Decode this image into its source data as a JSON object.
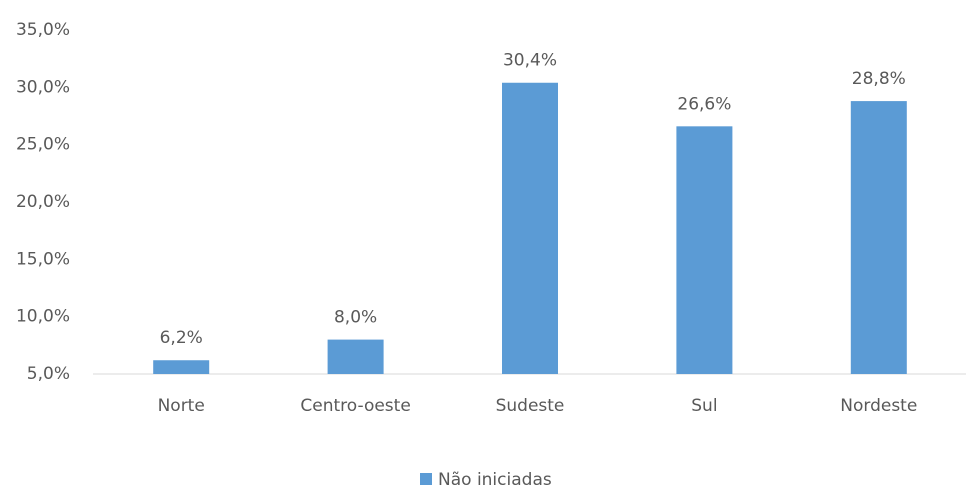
{
  "chart_data": {
    "type": "bar",
    "categories": [
      "Norte",
      "Centro-oeste",
      "Sudeste",
      "Sul",
      "Nordeste"
    ],
    "series": [
      {
        "name": "Não iniciadas",
        "color": "#5b9bd5",
        "values": [
          6.2,
          8.0,
          30.4,
          26.6,
          28.8
        ],
        "value_labels": [
          "6,2%",
          "8,0%",
          "30,4%",
          "26,6%",
          "28,8%"
        ]
      }
    ],
    "ylim": [
      5,
      35
    ],
    "yticks": [
      {
        "value": 5,
        "label": "5,0%"
      },
      {
        "value": 10,
        "label": "10,0%"
      },
      {
        "value": 15,
        "label": "15,0%"
      },
      {
        "value": 20,
        "label": "20,0%"
      },
      {
        "value": 25,
        "label": "25,0%"
      },
      {
        "value": 30,
        "label": "30,0%"
      },
      {
        "value": 35,
        "label": "35,0%"
      }
    ],
    "grid": false,
    "legend": "bottom"
  }
}
